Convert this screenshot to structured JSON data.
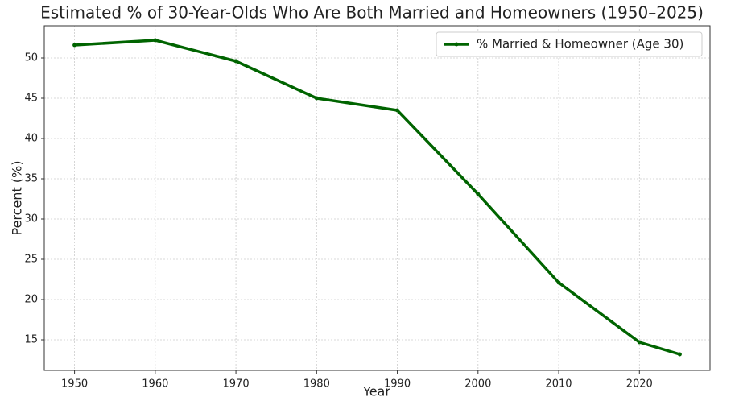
{
  "chart_data": {
    "type": "line",
    "title": "Estimated % of 30-Year-Olds Who Are Both Married and Homeowners (1950–2025)",
    "x_label": "Year",
    "y_label": "Percent (%)",
    "x": [
      1950,
      1960,
      1970,
      1980,
      1990,
      2000,
      2010,
      2020,
      2025
    ],
    "series": [
      {
        "name": "% Married & Homeowner (Age 30)",
        "color": "#006400",
        "values": [
          51.6,
          52.2,
          49.6,
          45,
          43.5,
          33.1,
          22.1,
          14.7,
          13.2
        ]
      }
    ],
    "xlim": [
      1946.25,
      2028.75
    ],
    "xticks": [
      1950,
      1960,
      1970,
      1980,
      1990,
      2000,
      2010,
      2020
    ],
    "ylim": [
      11.2,
      54
    ],
    "yticks": [
      15,
      20,
      25,
      30,
      35,
      40,
      45,
      50
    ],
    "grid": true,
    "legend": "upper right"
  }
}
